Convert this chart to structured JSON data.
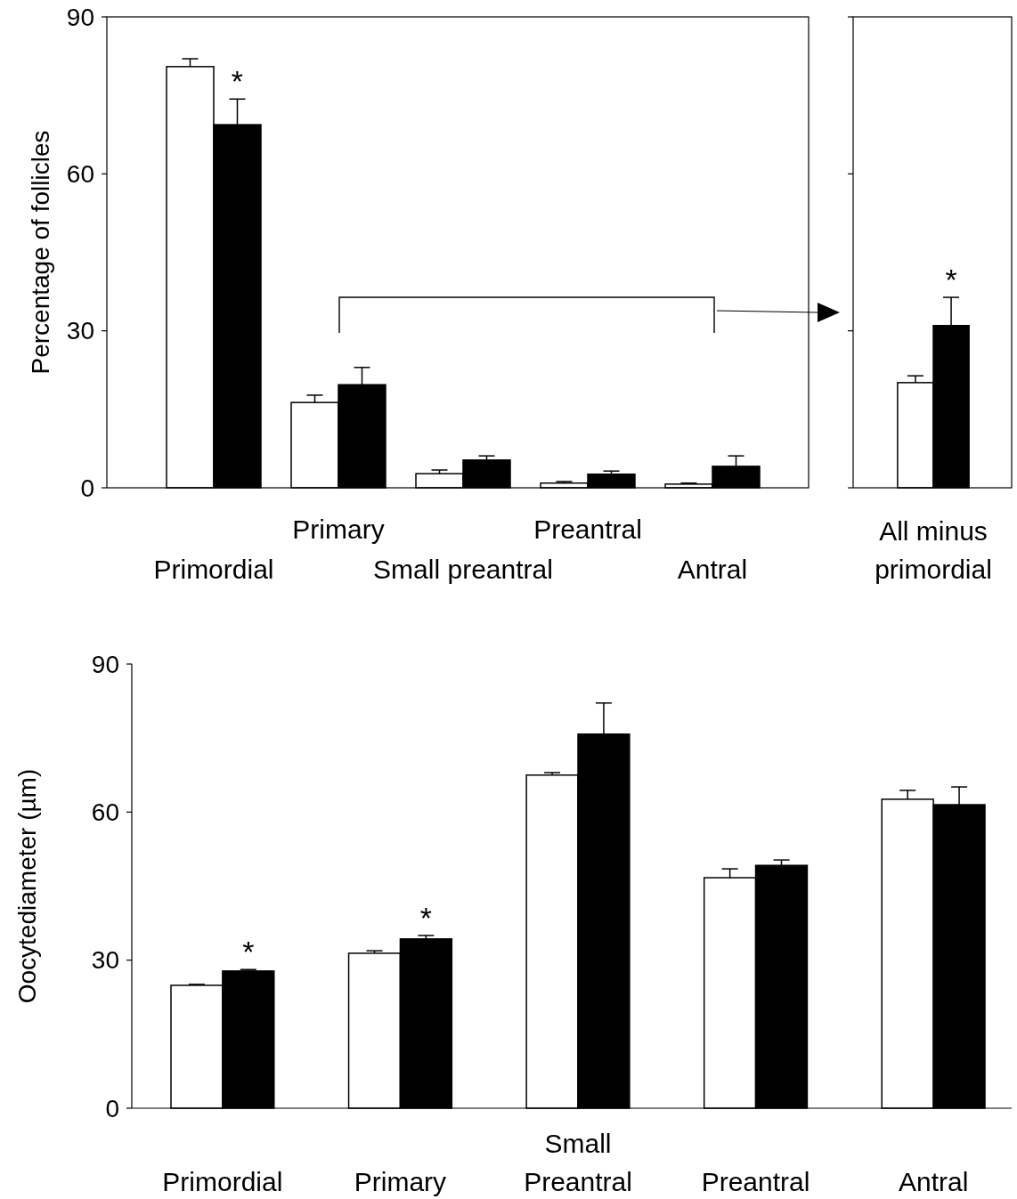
{
  "chart_data": [
    {
      "type": "bar",
      "ylabel": "Percentage of follicles",
      "categories": [
        "Primordial",
        "Primary",
        "Small preantral",
        "Preantral",
        "Antral"
      ],
      "ylim": [
        0,
        90
      ],
      "yticks": [
        0,
        30,
        60,
        90
      ],
      "series": [
        {
          "color": "#ffffff",
          "values": [
            80.5,
            16.3,
            2.7,
            0.9,
            0.7
          ],
          "errors": [
            [
              80.5,
              82.0
            ],
            [
              16.3,
              17.7
            ],
            [
              2.7,
              3.4
            ],
            [
              0.9,
              1.2
            ],
            [
              0.7,
              0.9
            ]
          ]
        },
        {
          "color": "#000000",
          "values": [
            69.4,
            19.7,
            5.3,
            2.6,
            4.1
          ],
          "errors": [
            [
              69.4,
              74.3
            ],
            [
              19.7,
              23.0
            ],
            [
              5.3,
              6.1
            ],
            [
              2.6,
              3.2
            ],
            [
              4.1,
              6.1
            ]
          ]
        }
      ],
      "annotations": [
        {
          "text": "*",
          "x": "Primordial",
          "y": 74.3
        }
      ]
    },
    {
      "type": "bar",
      "categories": [
        "All minus primordial"
      ],
      "ylim": [
        0,
        90
      ],
      "yticks": [
        0,
        30,
        60,
        90
      ],
      "tick_labels": "x",
      "series": [
        {
          "color": "#ffffff",
          "values": [
            20.1
          ],
          "errors": [
            [
              20.1,
              21.4
            ]
          ]
        },
        {
          "color": "#000000",
          "values": [
            31.0
          ],
          "errors": [
            [
              31.0,
              36.4
            ]
          ]
        }
      ],
      "annotations": [
        "*"
      ]
    },
    {
      "type": "bar",
      "ylabel": "Oocytediameter (µm)",
      "categories": [
        "Primordial",
        "Primary",
        "Small Preantral",
        "Preantral",
        "Antral"
      ],
      "ylim": [
        0,
        90
      ],
      "yticks": [
        0,
        30,
        60,
        90
      ],
      "series": [
        {
          "color": "#ffffff",
          "values": [
            24.9,
            31.4,
            67.5,
            46.7,
            62.6
          ],
          "errors": [
            [
              24.9,
              25.1
            ],
            [
              31.4,
              31.9
            ],
            [
              67.5,
              68.0
            ],
            [
              46.7,
              48.5
            ],
            [
              62.6,
              64.4
            ]
          ]
        },
        {
          "color": "#000000",
          "values": [
            27.8,
            34.3,
            75.8,
            49.2,
            61.5
          ],
          "errors": [
            [
              27.8,
              28.1
            ],
            [
              34.3,
              35.0
            ],
            [
              75.8,
              82.1
            ],
            [
              49.2,
              50.3
            ],
            [
              61.5,
              65.1
            ]
          ]
        }
      ],
      "annotations": [
        {
          "text": "*",
          "x": "Primordial",
          "y": 28.1
        },
        {
          "text": "*",
          "x": "Primary",
          "y": 35.0
        }
      ]
    }
  ]
}
